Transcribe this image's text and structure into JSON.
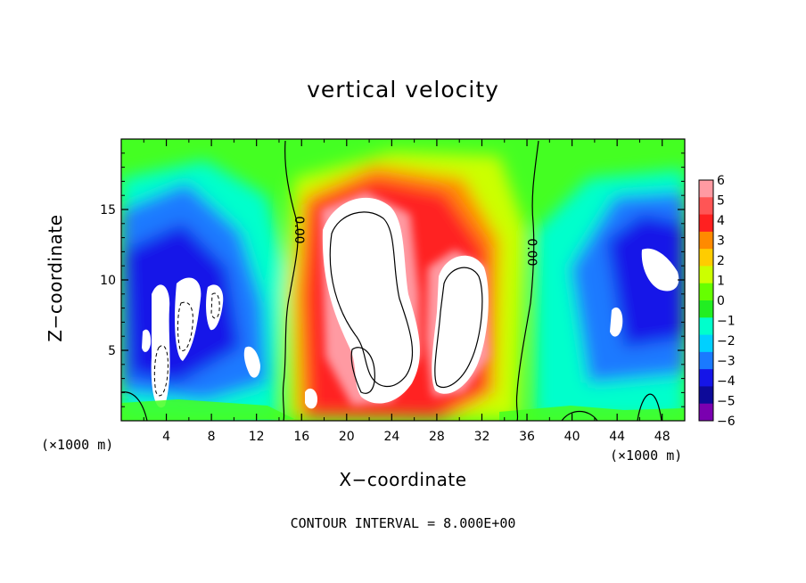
{
  "chart_data": {
    "type": "heatmap",
    "title": "vertical velocity",
    "xlabel": "X−coordinate",
    "ylabel": "Z−coordinate",
    "x_unit_left": "(×1000 m)",
    "x_unit_right": "(×1000 m)",
    "footer": "CONTOUR INTERVAL = 8.000E+00",
    "xlim": [
      0,
      50
    ],
    "ylim": [
      0,
      20
    ],
    "x_ticks": [
      "4",
      "8",
      "12",
      "16",
      "20",
      "24",
      "28",
      "32",
      "36",
      "40",
      "44",
      "48"
    ],
    "y_ticks": [
      "5",
      "10",
      "15"
    ],
    "colorbar": {
      "range": [
        -6,
        6
      ],
      "labels": [
        "6",
        "5",
        "4",
        "3",
        "2",
        "1",
        "0",
        "−1",
        "−2",
        "−3",
        "−4",
        "−5",
        "−6"
      ],
      "colors": [
        "#ff9aa2",
        "#ff5555",
        "#ff2020",
        "#ff8a00",
        "#ffcc00",
        "#ccff00",
        "#66ff00",
        "#22ee22",
        "#00ffcc",
        "#00d0ff",
        "#1a7aff",
        "#1515e8",
        "#0d0a99",
        "#7a00b0"
      ],
      "saturated_color": "#ffffff"
    },
    "contour_label": "0.00",
    "background_color": "#44ff22"
  }
}
